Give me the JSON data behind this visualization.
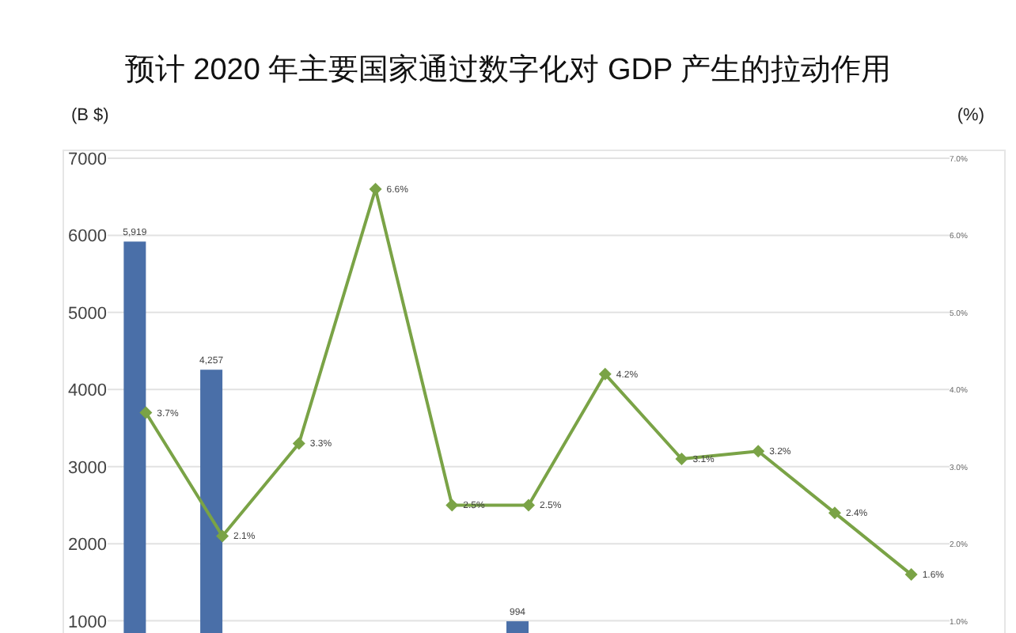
{
  "chart_data": {
    "type": "bar",
    "title": "预计 2020 年主要国家通过数字化对 GDP 产生的拉动作用",
    "ylabel": "(B $)",
    "y2label": "(%)",
    "categories": [
      null,
      null,
      null,
      null,
      null,
      null,
      null,
      null,
      null,
      null,
      null
    ],
    "ylim": [
      0,
      7000
    ],
    "yticks": [
      1000,
      2000,
      3000,
      4000,
      5000,
      6000,
      7000
    ],
    "y2lim": [
      0,
      7
    ],
    "y2ticks": [
      {
        "value": 1,
        "label": "1.0%"
      },
      {
        "value": 2,
        "label": "2.0%"
      },
      {
        "value": 3,
        "label": "3.0%"
      },
      {
        "value": 4,
        "label": "4.0%"
      },
      {
        "value": 5,
        "label": "5.0%"
      },
      {
        "value": 6,
        "label": "6.0%"
      },
      {
        "value": 7,
        "label": "7.0%"
      }
    ],
    "grid": "y",
    "series": [
      {
        "color": "#4a6fa8",
        "values": [
          5919,
          4257,
          null,
          null,
          null,
          994,
          null,
          null,
          null,
          null,
          null
        ],
        "value_labels": [
          "5,919",
          "4,257",
          null,
          null,
          null,
          "994",
          null,
          null,
          null,
          null,
          null
        ]
      },
      {
        "type": "line",
        "axis": "y2",
        "color": "#7aa346",
        "marker": "diamond",
        "line_style": "solid",
        "values": [
          3.7,
          2.1,
          3.3,
          6.6,
          2.5,
          2.5,
          4.2,
          3.1,
          3.2,
          2.4,
          1.6
        ],
        "value_labels": [
          "3.7%",
          "2.1%",
          "3.3%",
          "6.6%",
          "2.5%",
          "2.5%",
          "4.2%",
          "3.1%",
          "3.2%",
          "2.4%",
          "1.6%"
        ]
      }
    ]
  }
}
